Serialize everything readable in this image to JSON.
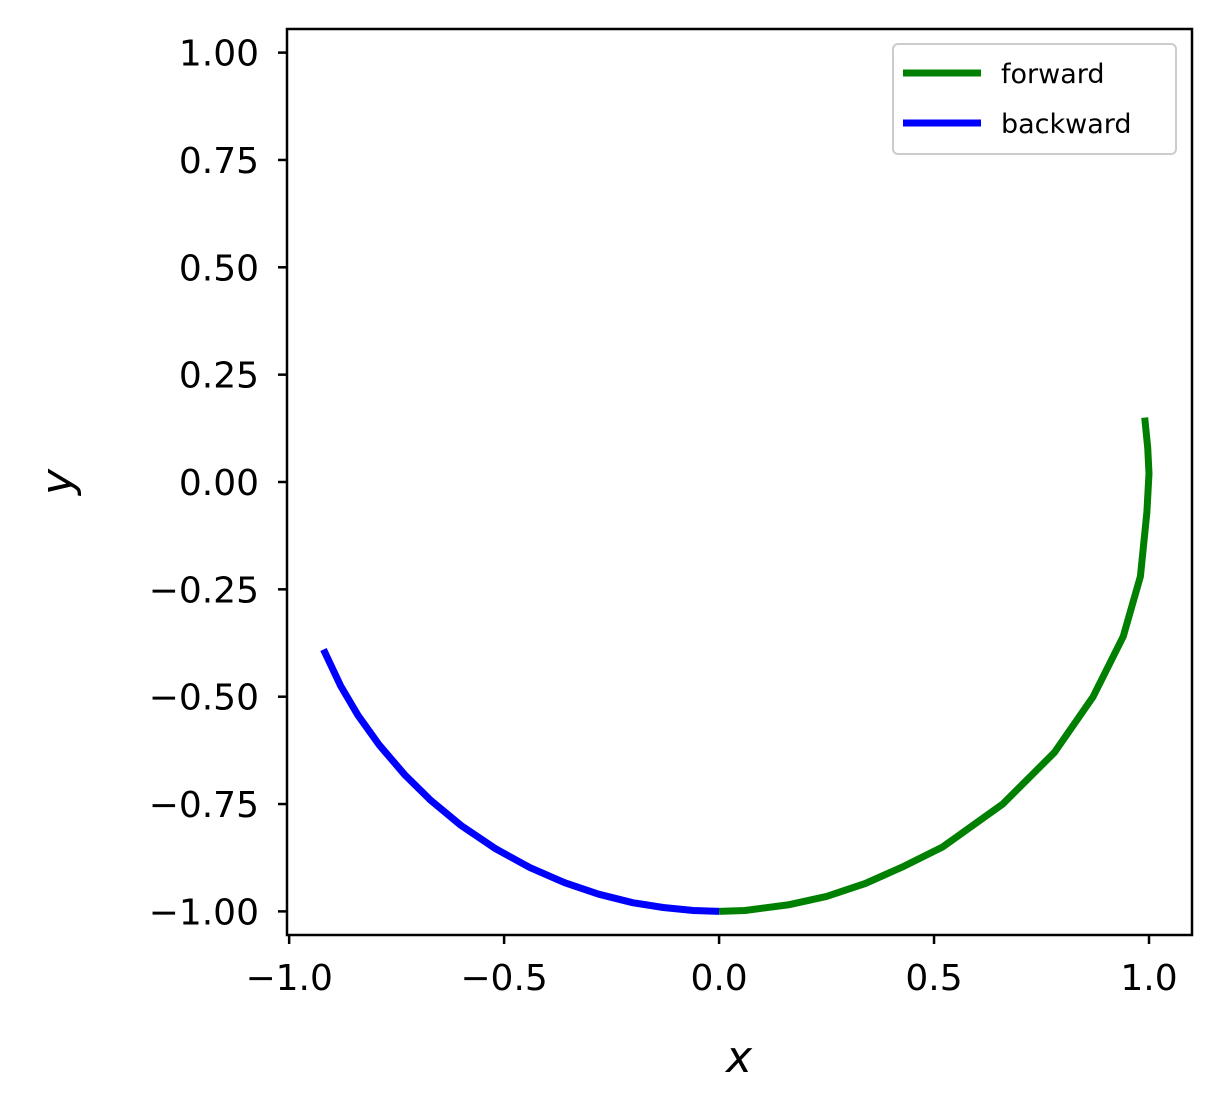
{
  "chart_data": {
    "type": "line",
    "title": "",
    "xlabel": "x",
    "ylabel": "y",
    "xlim": [
      -1.005,
      1.1
    ],
    "ylim": [
      -1.055,
      1.055
    ],
    "xticks": [
      -1.0,
      -0.5,
      0.0,
      0.5,
      1.0
    ],
    "xtick_labels": [
      "−1.0",
      "−0.5",
      "0.0",
      "0.5",
      "1.0"
    ],
    "yticks": [
      -1.0,
      -0.75,
      -0.5,
      -0.25,
      0.0,
      0.25,
      0.5,
      0.75,
      1.0
    ],
    "ytick_labels": [
      "−1.00",
      "−0.75",
      "−0.50",
      "−0.25",
      "0.00",
      "0.25",
      "0.50",
      "0.75",
      "1.00"
    ],
    "grid": false,
    "legend_position": "top-right",
    "series": [
      {
        "name": "forward",
        "color": "#008000",
        "x": [
          0.0,
          0.06,
          0.16,
          0.25,
          0.34,
          0.43,
          0.52,
          0.66,
          0.78,
          0.87,
          0.94,
          0.98,
          0.995,
          1.0,
          0.997,
          0.99
        ],
        "y": [
          -1.0,
          -0.998,
          -0.985,
          -0.965,
          -0.935,
          -0.895,
          -0.85,
          -0.75,
          -0.63,
          -0.5,
          -0.36,
          -0.22,
          -0.07,
          0.02,
          0.08,
          0.15
        ]
      },
      {
        "name": "backward",
        "color": "#0000ff",
        "x": [
          0.0,
          -0.06,
          -0.13,
          -0.2,
          -0.28,
          -0.36,
          -0.44,
          -0.52,
          -0.6,
          -0.67,
          -0.73,
          -0.79,
          -0.84,
          -0.88,
          -0.92
        ],
        "y": [
          -1.0,
          -0.998,
          -0.991,
          -0.98,
          -0.96,
          -0.933,
          -0.898,
          -0.854,
          -0.8,
          -0.742,
          -0.683,
          -0.613,
          -0.543,
          -0.475,
          -0.39
        ]
      }
    ]
  }
}
